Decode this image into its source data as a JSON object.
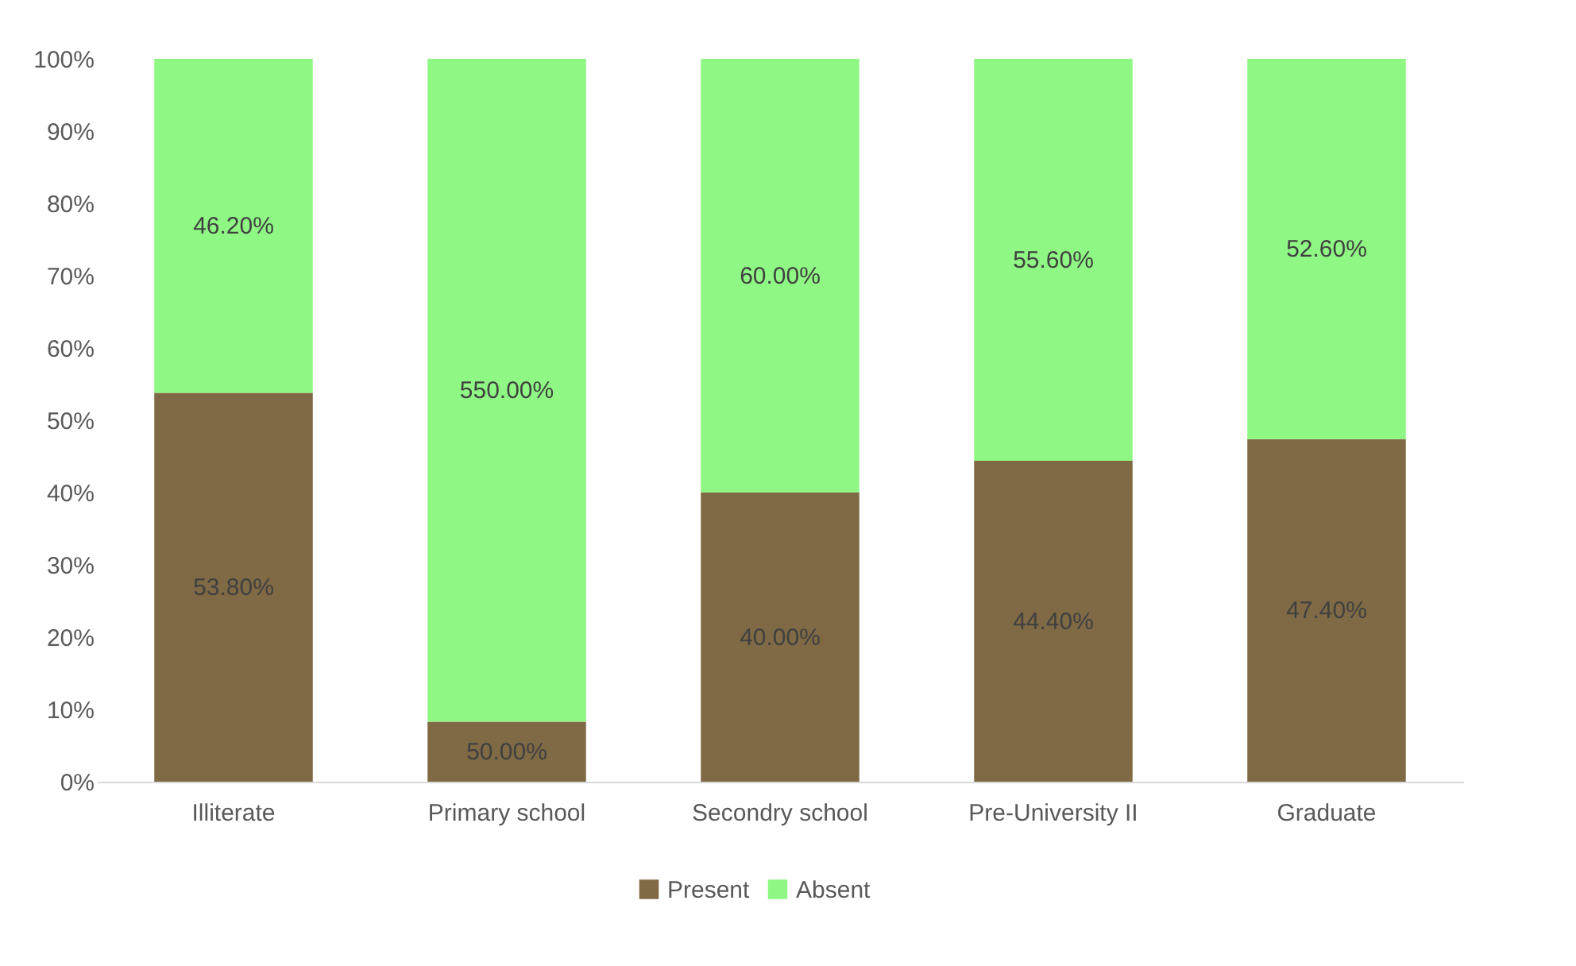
{
  "chart_data": {
    "type": "bar",
    "stacked": true,
    "categories": [
      "Illiterate",
      "Primary school",
      "Secondry school",
      "Pre-University II",
      "Graduate"
    ],
    "series": [
      {
        "name": "Present",
        "color": "#7f6a45",
        "values": [
          53.8,
          8.3,
          40.0,
          44.4,
          47.4
        ],
        "value_labels": [
          "53.80%",
          null,
          "40.00%",
          "44.40%",
          "47.40%"
        ]
      },
      {
        "name": "Absent",
        "color": "#8ff884",
        "values": [
          46.2,
          91.7,
          60.0,
          55.6,
          52.6
        ],
        "value_labels": [
          "46.20%",
          null,
          "60.00%",
          "55.60%",
          "52.60%"
        ]
      }
    ],
    "ylim": [
      0,
      100
    ],
    "yticks": [
      {
        "value": 0,
        "label": "0%"
      },
      {
        "value": 10,
        "label": "10%"
      },
      {
        "value": 20,
        "label": "20%"
      },
      {
        "value": 30,
        "label": "30%"
      },
      {
        "value": 40,
        "label": "40%"
      },
      {
        "value": 50,
        "label": "50%"
      },
      {
        "value": 60,
        "label": "60%"
      },
      {
        "value": 70,
        "label": "70%"
      },
      {
        "value": 80,
        "label": "80%"
      },
      {
        "value": 90,
        "label": "90%"
      },
      {
        "value": 100,
        "label": "100%"
      }
    ],
    "annotations": [
      "50.00%",
      "550.00%"
    ],
    "grid": false,
    "legend": "bottom"
  }
}
